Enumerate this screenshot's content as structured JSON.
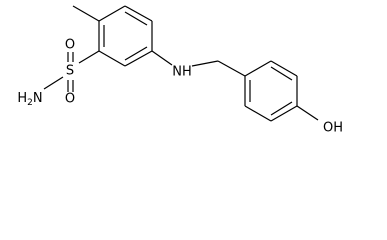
{
  "labels": {
    "oxygen_top": "O",
    "sulfur": "S",
    "oxygen_bottom": "O",
    "amine_h": "H",
    "amine_sub": "2",
    "amine_n": "N",
    "nh": "NH",
    "hydroxyl": "OH"
  }
}
